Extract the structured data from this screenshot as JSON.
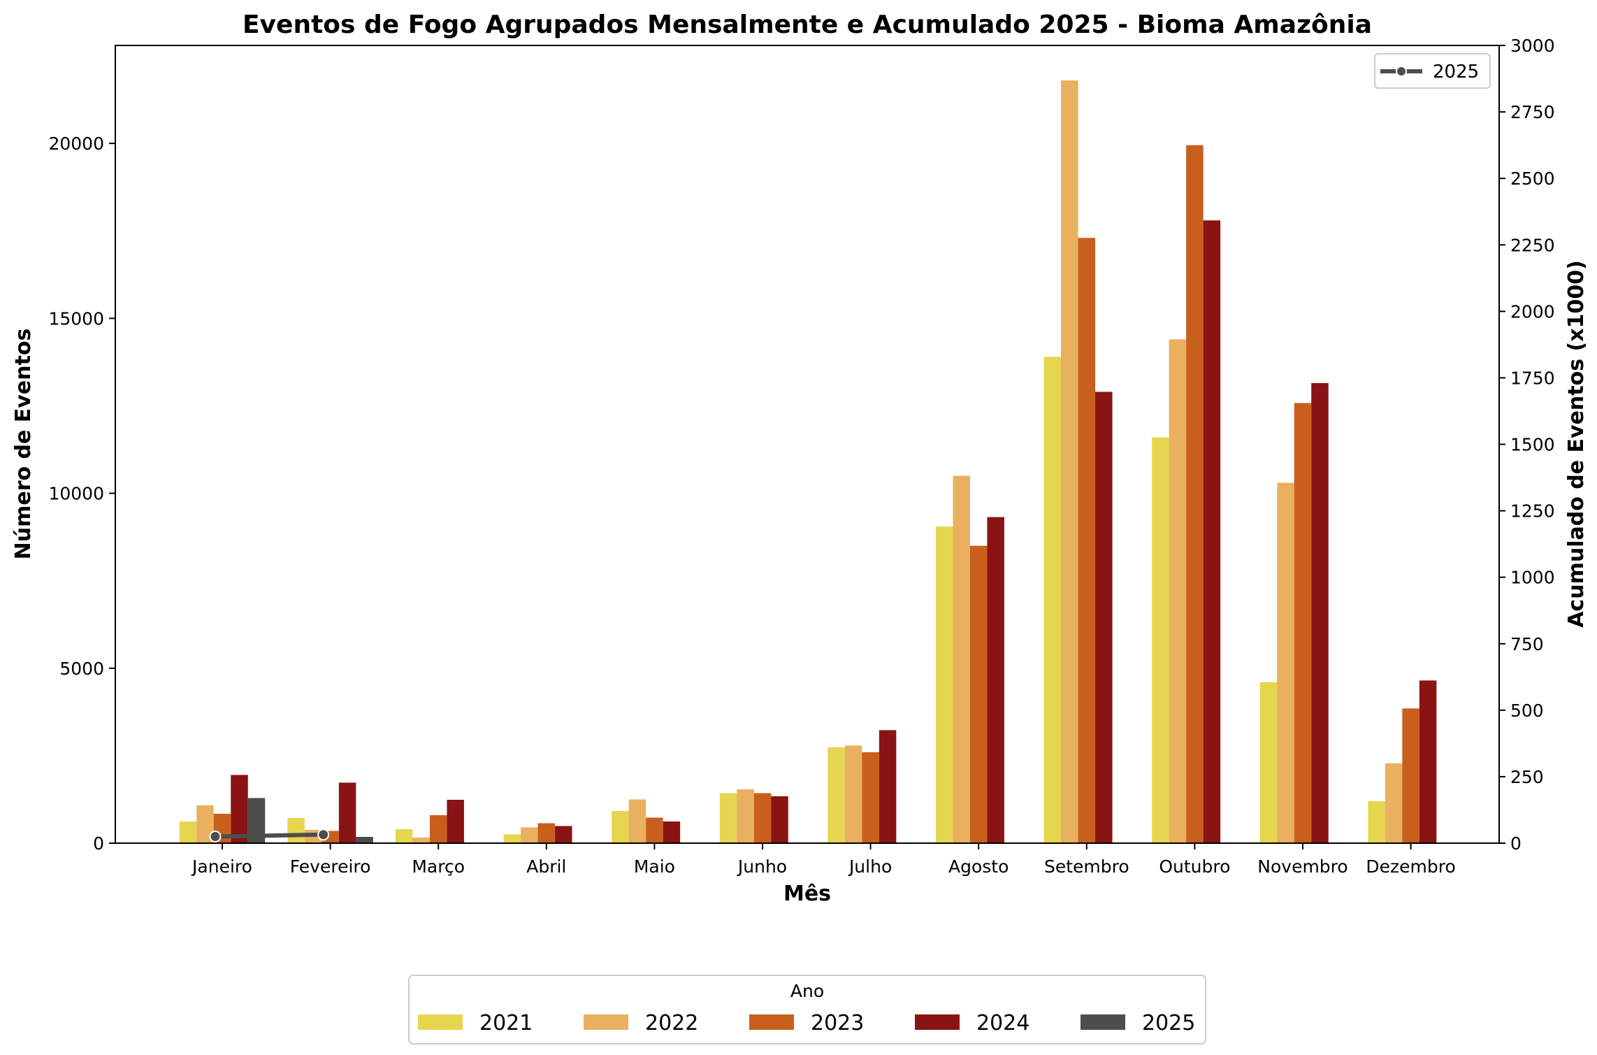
{
  "chart_data": {
    "type": "bar",
    "title": "Eventos de Fogo Agrupados Mensalmente e Acumulado 2025 - Bioma Amazônia",
    "xlabel": "Mês",
    "ylabel": "Número de Eventos",
    "y2label": "Acumulado de Eventos (x1000)",
    "ylim": [
      0,
      22800
    ],
    "yticks": [
      0,
      5000,
      10000,
      15000,
      20000
    ],
    "y2lim": [
      0,
      3000
    ],
    "y2ticks": [
      0,
      250,
      500,
      750,
      1000,
      1250,
      1500,
      1750,
      2000,
      2250,
      2500,
      2750,
      3000
    ],
    "categories": [
      "Janeiro",
      "Fevereiro",
      "Março",
      "Abril",
      "Maio",
      "Junho",
      "Julho",
      "Agosto",
      "Setembro",
      "Outubro",
      "Novembro",
      "Dezembro"
    ],
    "legend_title": "Ano",
    "legend_position": "bottom-center",
    "series": [
      {
        "name": "2021",
        "color": "#e6d64f",
        "values": [
          620,
          720,
          400,
          250,
          920,
          1430,
          2740,
          9050,
          13900,
          11600,
          4600,
          1200
        ]
      },
      {
        "name": "2022",
        "color": "#e9b060",
        "values": [
          1080,
          380,
          160,
          450,
          1250,
          1540,
          2790,
          10500,
          21800,
          14400,
          10300,
          2280
        ]
      },
      {
        "name": "2023",
        "color": "#c95f1c",
        "values": [
          840,
          350,
          800,
          570,
          730,
          1430,
          2600,
          8500,
          17300,
          19950,
          12580,
          3850
        ]
      },
      {
        "name": "2024",
        "color": "#8a1414",
        "values": [
          1950,
          1730,
          1240,
          490,
          620,
          1340,
          3230,
          9320,
          12900,
          17800,
          13150,
          4650
        ]
      },
      {
        "name": "2025",
        "color": "#4d4d4d",
        "values": [
          1290,
          180,
          null,
          null,
          null,
          null,
          null,
          null,
          null,
          null,
          null,
          null
        ]
      }
    ],
    "line_series": {
      "name": "2025",
      "axis": "right",
      "color": "#4d4d4d",
      "legend_position": "top-right",
      "points": [
        {
          "category": "Janeiro",
          "value": 25
        },
        {
          "category": "Fevereiro",
          "value": 32
        }
      ]
    }
  }
}
